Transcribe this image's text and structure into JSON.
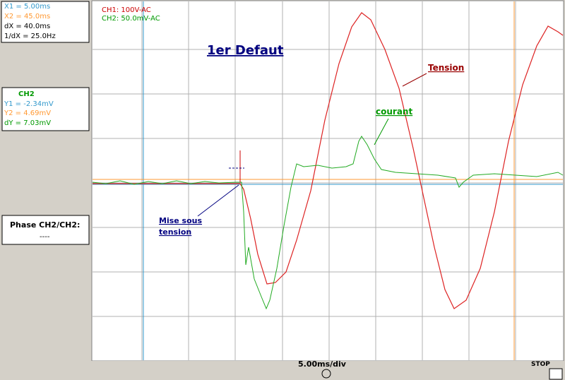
{
  "cursor_panel": {
    "x1": "X1 = 5.00ms",
    "x2": "X2 = 45.0ms",
    "dx": "dX = 40.0ms",
    "inv_dx": "1/dX = 25.0Hz"
  },
  "channel_panel": {
    "title": "CH2",
    "y1": "Y1 = -2.34mV",
    "y2": "Y2 = 4.69mV",
    "dy": "dY = 7.03mV"
  },
  "phase_panel": {
    "title": "Phase CH2/CH2:",
    "value": "----"
  },
  "scope": {
    "ch1": "CH1: 100V-AC",
    "ch2": "CH2: 50.0mV-AC",
    "title": "1er Defaut",
    "annotations": [
      "Tension",
      "courant",
      "Mise  sous",
      "tension"
    ],
    "timebase": "5.00ms/div",
    "status": "STOP"
  }
}
